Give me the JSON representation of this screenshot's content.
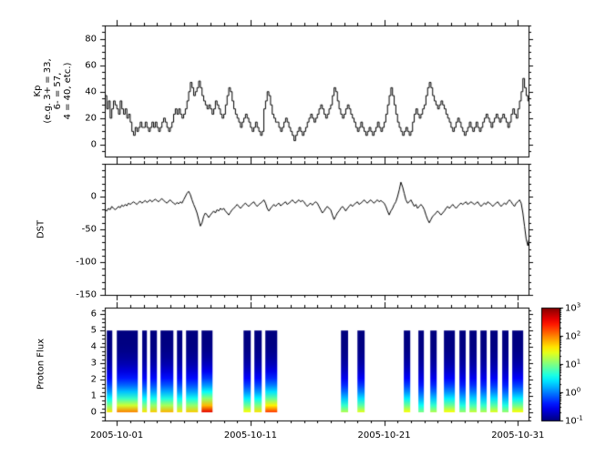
{
  "colors": {
    "background": "#ffffff",
    "axis": "#000000",
    "line": "#000000"
  },
  "x_axis": {
    "domain_days": [
      0.1,
      31.8
    ],
    "major_tick_days": [
      1,
      11,
      21,
      31
    ],
    "tick_labels": [
      "2005-10-01",
      "2005-10-11",
      "2005-10-21",
      "2005-10-31"
    ],
    "minor_tick_step_days": 1
  },
  "chart_data": [
    {
      "panel": "kp",
      "type": "line",
      "line_style": "steps",
      "ylabel_lines": [
        "Kp",
        "(e.g. 3+ = 33,",
        "6- = 57,",
        "4 = 40, etc.)"
      ],
      "ylim": [
        -9,
        90
      ],
      "yticks": [
        0,
        20,
        40,
        60,
        80
      ],
      "y_minor_step": 5,
      "start_day": 0.0,
      "step_days": 0.125,
      "values": [
        30,
        37,
        27,
        33,
        20,
        27,
        33,
        30,
        27,
        23,
        33,
        27,
        23,
        27,
        20,
        23,
        17,
        10,
        7,
        13,
        10,
        13,
        17,
        13,
        13,
        17,
        13,
        10,
        13,
        17,
        13,
        17,
        13,
        10,
        13,
        17,
        20,
        17,
        13,
        10,
        13,
        17,
        23,
        27,
        23,
        27,
        23,
        20,
        23,
        27,
        33,
        40,
        47,
        43,
        37,
        40,
        43,
        48,
        43,
        37,
        33,
        30,
        27,
        30,
        27,
        23,
        27,
        33,
        30,
        27,
        23,
        20,
        23,
        30,
        37,
        43,
        40,
        33,
        27,
        23,
        20,
        17,
        13,
        17,
        20,
        23,
        20,
        17,
        13,
        10,
        13,
        17,
        13,
        10,
        7,
        10,
        27,
        33,
        40,
        37,
        30,
        23,
        20,
        17,
        17,
        13,
        10,
        13,
        17,
        20,
        17,
        13,
        10,
        7,
        3,
        7,
        10,
        13,
        10,
        7,
        10,
        13,
        17,
        20,
        23,
        20,
        17,
        20,
        23,
        27,
        30,
        27,
        23,
        20,
        23,
        27,
        30,
        37,
        43,
        40,
        33,
        27,
        23,
        20,
        23,
        27,
        30,
        27,
        23,
        20,
        17,
        13,
        10,
        13,
        17,
        13,
        10,
        7,
        10,
        13,
        10,
        7,
        10,
        13,
        17,
        13,
        10,
        13,
        17,
        23,
        30,
        37,
        43,
        37,
        30,
        23,
        17,
        13,
        10,
        7,
        10,
        13,
        10,
        7,
        10,
        17,
        23,
        27,
        23,
        20,
        23,
        27,
        30,
        37,
        43,
        47,
        43,
        37,
        33,
        30,
        27,
        30,
        33,
        30,
        27,
        23,
        20,
        17,
        13,
        10,
        13,
        17,
        20,
        17,
        13,
        10,
        7,
        10,
        13,
        17,
        13,
        10,
        13,
        17,
        13,
        10,
        13,
        17,
        20,
        23,
        20,
        17,
        13,
        17,
        20,
        23,
        20,
        17,
        20,
        23,
        20,
        17,
        13,
        17,
        23,
        27,
        23,
        20,
        27,
        33,
        40,
        50,
        43,
        37,
        33,
        30
      ]
    },
    {
      "panel": "dst",
      "type": "line",
      "line_style": "linear",
      "ylabel": "DST",
      "ylim": [
        -150,
        50
      ],
      "yticks": [
        0,
        -50,
        -100,
        -150
      ],
      "y_minor_step": 10,
      "start_day": 0.0,
      "step_days": 0.125,
      "values": [
        -25,
        -20,
        -22,
        -18,
        -20,
        -15,
        -18,
        -20,
        -18,
        -15,
        -17,
        -13,
        -15,
        -12,
        -14,
        -10,
        -12,
        -10,
        -8,
        -10,
        -12,
        -9,
        -7,
        -10,
        -8,
        -6,
        -9,
        -7,
        -5,
        -8,
        -6,
        -4,
        -6,
        -8,
        -5,
        -3,
        -6,
        -8,
        -10,
        -7,
        -5,
        -8,
        -10,
        -12,
        -9,
        -11,
        -8,
        -10,
        -5,
        0,
        5,
        8,
        3,
        -5,
        -12,
        -18,
        -25,
        -35,
        -45,
        -40,
        -30,
        -25,
        -28,
        -32,
        -28,
        -25,
        -22,
        -25,
        -20,
        -22,
        -18,
        -20,
        -18,
        -22,
        -25,
        -28,
        -24,
        -20,
        -18,
        -15,
        -12,
        -15,
        -18,
        -15,
        -12,
        -10,
        -13,
        -15,
        -12,
        -10,
        -8,
        -12,
        -15,
        -12,
        -10,
        -8,
        -5,
        -10,
        -18,
        -22,
        -18,
        -15,
        -12,
        -15,
        -12,
        -10,
        -14,
        -12,
        -10,
        -8,
        -12,
        -10,
        -8,
        -5,
        -8,
        -10,
        -7,
        -5,
        -8,
        -6,
        -8,
        -12,
        -15,
        -12,
        -10,
        -13,
        -10,
        -8,
        -10,
        -15,
        -20,
        -25,
        -22,
        -18,
        -15,
        -18,
        -20,
        -28,
        -35,
        -30,
        -25,
        -22,
        -18,
        -15,
        -18,
        -22,
        -18,
        -15,
        -12,
        -15,
        -12,
        -10,
        -8,
        -12,
        -10,
        -8,
        -5,
        -8,
        -10,
        -7,
        -5,
        -8,
        -10,
        -7,
        -5,
        -8,
        -6,
        -8,
        -10,
        -15,
        -22,
        -28,
        -22,
        -18,
        -12,
        -8,
        0,
        10,
        22,
        15,
        5,
        -5,
        -10,
        -8,
        -5,
        -10,
        -15,
        -12,
        -18,
        -15,
        -12,
        -15,
        -20,
        -28,
        -35,
        -40,
        -35,
        -30,
        -28,
        -25,
        -22,
        -25,
        -28,
        -25,
        -22,
        -18,
        -15,
        -18,
        -15,
        -12,
        -15,
        -18,
        -15,
        -12,
        -10,
        -12,
        -10,
        -8,
        -12,
        -10,
        -8,
        -10,
        -12,
        -10,
        -8,
        -12,
        -15,
        -12,
        -10,
        -12,
        -8,
        -10,
        -12,
        -15,
        -12,
        -10,
        -8,
        -12,
        -15,
        -12,
        -10,
        -12,
        -8,
        -5,
        -8,
        -12,
        -15,
        -10,
        -8,
        -5,
        -10,
        -25,
        -45,
        -65,
        -75,
        -60
      ]
    },
    {
      "panel": "proton_flux",
      "type": "heatmap",
      "ylabel": "Proton Flux",
      "ylim": [
        -0.5,
        6.4
      ],
      "yticks": [
        0,
        1,
        2,
        3,
        4,
        5,
        6
      ],
      "y_minor_step": 0.25,
      "bar_y_range": [
        0,
        5
      ],
      "colormap": "jet",
      "log_range": [
        -1,
        3
      ],
      "top_log": -1.0,
      "bars": [
        {
          "start": 0.25,
          "end": 0.66,
          "bottom_log": 1.6
        },
        {
          "start": 1.0,
          "end": 2.57,
          "bottom_log": 2.0
        },
        {
          "start": 2.9,
          "end": 3.25,
          "bottom_log": 1.6
        },
        {
          "start": 3.5,
          "end": 4.0,
          "bottom_log": 1.7
        },
        {
          "start": 4.27,
          "end": 5.23,
          "bottom_log": 1.8
        },
        {
          "start": 5.5,
          "end": 5.9,
          "bottom_log": 1.6
        },
        {
          "start": 6.18,
          "end": 7.07,
          "bottom_log": 1.7
        },
        {
          "start": 7.34,
          "end": 8.16,
          "bottom_log": 2.6
        },
        {
          "start": 10.48,
          "end": 11.02,
          "bottom_log": 1.5
        },
        {
          "start": 11.29,
          "end": 11.84,
          "bottom_log": 1.6
        },
        {
          "start": 12.11,
          "end": 13.0,
          "bottom_log": 2.3
        },
        {
          "start": 17.77,
          "end": 18.3,
          "bottom_log": 1.2
        },
        {
          "start": 19.0,
          "end": 19.54,
          "bottom_log": 1.4
        },
        {
          "start": 22.47,
          "end": 22.95,
          "bottom_log": 1.5
        },
        {
          "start": 23.56,
          "end": 23.97,
          "bottom_log": 1.0
        },
        {
          "start": 24.45,
          "end": 24.93,
          "bottom_log": 1.2
        },
        {
          "start": 25.47,
          "end": 26.29,
          "bottom_log": 1.5
        },
        {
          "start": 26.63,
          "end": 27.1,
          "bottom_log": 1.1
        },
        {
          "start": 27.38,
          "end": 27.92,
          "bottom_log": 1.3
        },
        {
          "start": 28.2,
          "end": 28.67,
          "bottom_log": 1.2
        },
        {
          "start": 28.94,
          "end": 29.49,
          "bottom_log": 1.4
        },
        {
          "start": 29.83,
          "end": 30.3,
          "bottom_log": 1.1
        },
        {
          "start": 30.58,
          "end": 31.4,
          "bottom_log": 1.5
        }
      ]
    }
  ],
  "colorbar": {
    "ticks": [
      {
        "base": "10",
        "exp": "3"
      },
      {
        "base": "10",
        "exp": "2"
      },
      {
        "base": "10",
        "exp": "1"
      },
      {
        "base": "10",
        "exp": "0"
      },
      {
        "base": "10",
        "exp": "-1"
      }
    ],
    "log_values": [
      3,
      2,
      1,
      0,
      -1
    ]
  }
}
